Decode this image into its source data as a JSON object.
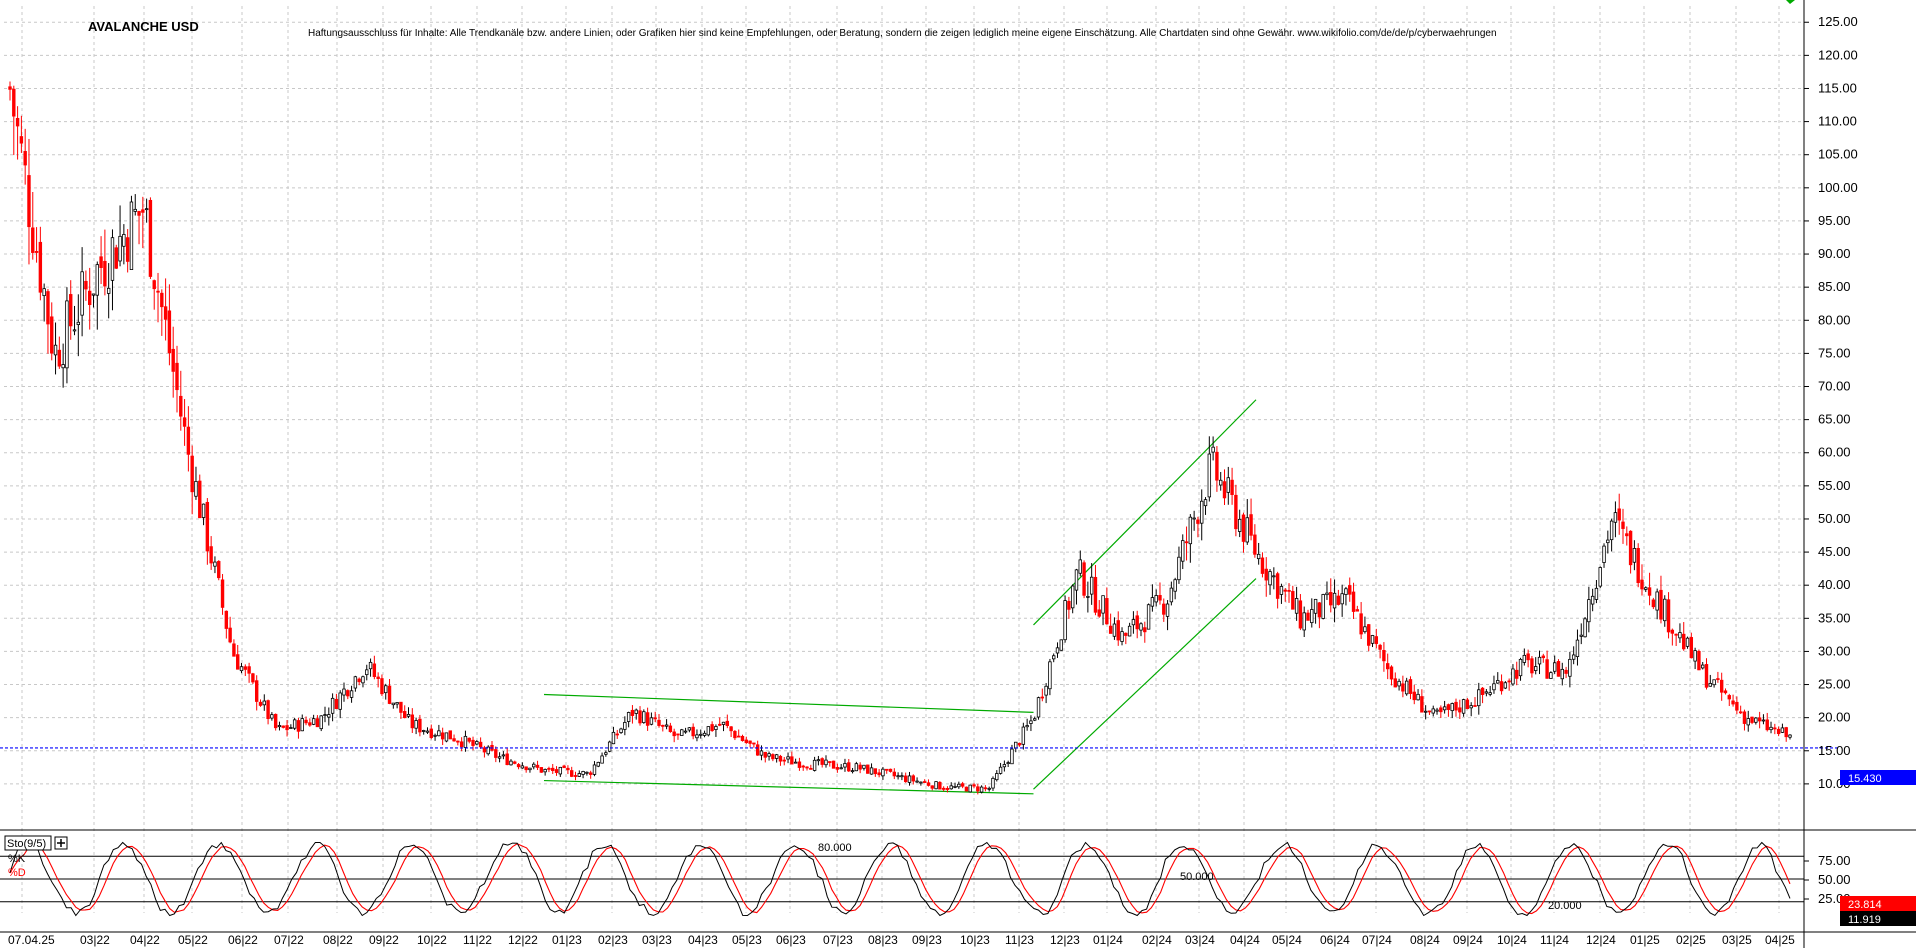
{
  "title": "AVALANCHE USD",
  "disclaimer": "Haftungsausschluss für Inhalte: Alle Trendkanäle bzw. andere Linien, oder Grafiken hier sind keine Empfehlungen, oder Beratung, sondern die zeigen lediglich meine eigene Einschätzung. Alle Chartdaten sind ohne Gewähr. www.wikifolio.com/de/de/p/cyberwaehrungen",
  "current_price_label": "15.430",
  "indicator": {
    "name": "Sto(9/5)",
    "k_label": "%K",
    "d_label": "%D",
    "k_value_label": "23.814",
    "d_value_label": "11.919",
    "levels": [
      {
        "label": "80.000",
        "value": 80
      },
      {
        "label": "50.000",
        "value": 50
      },
      {
        "label": "20.000",
        "value": 20
      }
    ],
    "y_ticks": [
      "75.00",
      "50.00",
      "25.00"
    ],
    "k_color": "#000000",
    "d_color": "#ff0000"
  },
  "colors": {
    "up_candle": "#000000",
    "down_candle": "#ff0000",
    "trendline": "#00aa00",
    "price_line": "#0000ff",
    "grid": "#c8c8c8"
  },
  "chart_data": {
    "type": "candlestick",
    "title": "AVALANCHE USD",
    "ylim": [
      5.0,
      127.0
    ],
    "y_ticks": [
      "10.00",
      "15.00",
      "20.00",
      "25.00",
      "30.00",
      "35.00",
      "40.00",
      "45.00",
      "50.00",
      "55.00",
      "60.00",
      "65.00",
      "70.00",
      "75.00",
      "80.00",
      "85.00",
      "90.00",
      "95.00",
      "100.00",
      "105.00",
      "110.00",
      "115.00",
      "120.00",
      "125.00"
    ],
    "x_tick_labels": [
      "07.04.25",
      "03|22",
      "04|22",
      "05|22",
      "06|22",
      "07|22",
      "08|22",
      "09|22",
      "10|22",
      "11|22",
      "12|22",
      "01|23",
      "02|23",
      "03|23",
      "04|23",
      "05|23",
      "06|23",
      "07|23",
      "08|23",
      "09|23",
      "10|23",
      "11|23",
      "12|23",
      "01|24",
      "02|24",
      "03|24",
      "04|24",
      "05|24",
      "06|24",
      "07|24",
      "08|24",
      "09|24",
      "10|24",
      "11|24",
      "12|24",
      "01|25",
      "02|25",
      "03|25",
      "04|25"
    ],
    "grid": true,
    "current_price": 15.43,
    "approx_close_path": [
      {
        "date": "2022-01",
        "value": 115
      },
      {
        "date": "2022-02",
        "value": 75
      },
      {
        "date": "2022-03",
        "value": 88
      },
      {
        "date": "2022-04",
        "value": 97
      },
      {
        "date": "2022-05",
        "value": 60
      },
      {
        "date": "2022-05b",
        "value": 30
      },
      {
        "date": "2022-06",
        "value": 18
      },
      {
        "date": "2022-07",
        "value": 20
      },
      {
        "date": "2022-08",
        "value": 28
      },
      {
        "date": "2022-09",
        "value": 19
      },
      {
        "date": "2022-10",
        "value": 17
      },
      {
        "date": "2022-11",
        "value": 14
      },
      {
        "date": "2022-12",
        "value": 12
      },
      {
        "date": "2023-01",
        "value": 11.5
      },
      {
        "date": "2023-02",
        "value": 21
      },
      {
        "date": "2023-03",
        "value": 17
      },
      {
        "date": "2023-04",
        "value": 19
      },
      {
        "date": "2023-05",
        "value": 14
      },
      {
        "date": "2023-06",
        "value": 13
      },
      {
        "date": "2023-07",
        "value": 12.5
      },
      {
        "date": "2023-08",
        "value": 11
      },
      {
        "date": "2023-09",
        "value": 9.5
      },
      {
        "date": "2023-10",
        "value": 9.3
      },
      {
        "date": "2023-11",
        "value": 20
      },
      {
        "date": "2023-12",
        "value": 42
      },
      {
        "date": "2024-01",
        "value": 32
      },
      {
        "date": "2024-02",
        "value": 38
      },
      {
        "date": "2024-03",
        "value": 58
      },
      {
        "date": "2024-04",
        "value": 45
      },
      {
        "date": "2024-05",
        "value": 35
      },
      {
        "date": "2024-06",
        "value": 38
      },
      {
        "date": "2024-07",
        "value": 27
      },
      {
        "date": "2024-08",
        "value": 20
      },
      {
        "date": "2024-09",
        "value": 23
      },
      {
        "date": "2024-10",
        "value": 28
      },
      {
        "date": "2024-11",
        "value": 27
      },
      {
        "date": "2024-12",
        "value": 50
      },
      {
        "date": "2025-01",
        "value": 38
      },
      {
        "date": "2025-02",
        "value": 27
      },
      {
        "date": "2025-03",
        "value": 20
      },
      {
        "date": "2025-04",
        "value": 17
      }
    ],
    "trendlines": [
      {
        "from": {
          "date": "2022-12",
          "value": 23.5
        },
        "to": {
          "date": "2023-11",
          "value": 20.8
        }
      },
      {
        "from": {
          "date": "2022-12",
          "value": 10.5
        },
        "to": {
          "date": "2023-11",
          "value": 8.5
        }
      },
      {
        "from": {
          "date": "2023-11",
          "value": 34
        },
        "to": {
          "date": "2024-04",
          "value": 68
        }
      },
      {
        "from": {
          "date": "2023-11",
          "value": 9.2
        },
        "to": {
          "date": "2024-04",
          "value": 41
        }
      }
    ]
  }
}
